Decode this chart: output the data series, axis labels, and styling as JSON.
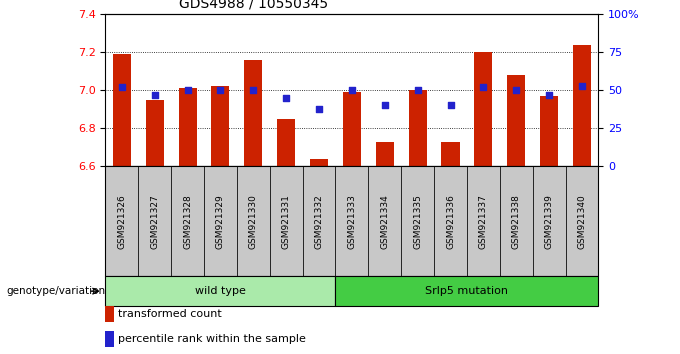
{
  "title": "GDS4988 / 10550345",
  "samples": [
    "GSM921326",
    "GSM921327",
    "GSM921328",
    "GSM921329",
    "GSM921330",
    "GSM921331",
    "GSM921332",
    "GSM921333",
    "GSM921334",
    "GSM921335",
    "GSM921336",
    "GSM921337",
    "GSM921338",
    "GSM921339",
    "GSM921340"
  ],
  "bar_values": [
    7.19,
    6.95,
    7.01,
    7.02,
    7.16,
    6.85,
    6.64,
    6.99,
    6.73,
    7.0,
    6.73,
    7.2,
    7.08,
    6.97,
    7.24
  ],
  "percentile_values": [
    52,
    47,
    50,
    50,
    50,
    45,
    38,
    50,
    40,
    50,
    40,
    52,
    50,
    47,
    53
  ],
  "ylim_left": [
    6.6,
    7.4
  ],
  "ylim_right": [
    0,
    100
  ],
  "bar_color": "#cc2200",
  "dot_color": "#2222cc",
  "bar_width": 0.55,
  "yticks_left": [
    6.6,
    6.8,
    7.0,
    7.2,
    7.4
  ],
  "yticks_right": [
    0,
    25,
    50,
    75,
    100
  ],
  "wild_type_count": 7,
  "srfp5_count": 8,
  "genotype_label": "genotype/variation",
  "wild_type_label": "wild type",
  "srlp5_label": "Srlp5 mutation",
  "legend_bar_label": "transformed count",
  "legend_dot_label": "percentile rank within the sample",
  "tick_bg_color": "#c8c8c8",
  "group_color_wt": "#aaeaaa",
  "group_color_mut": "#44cc44"
}
